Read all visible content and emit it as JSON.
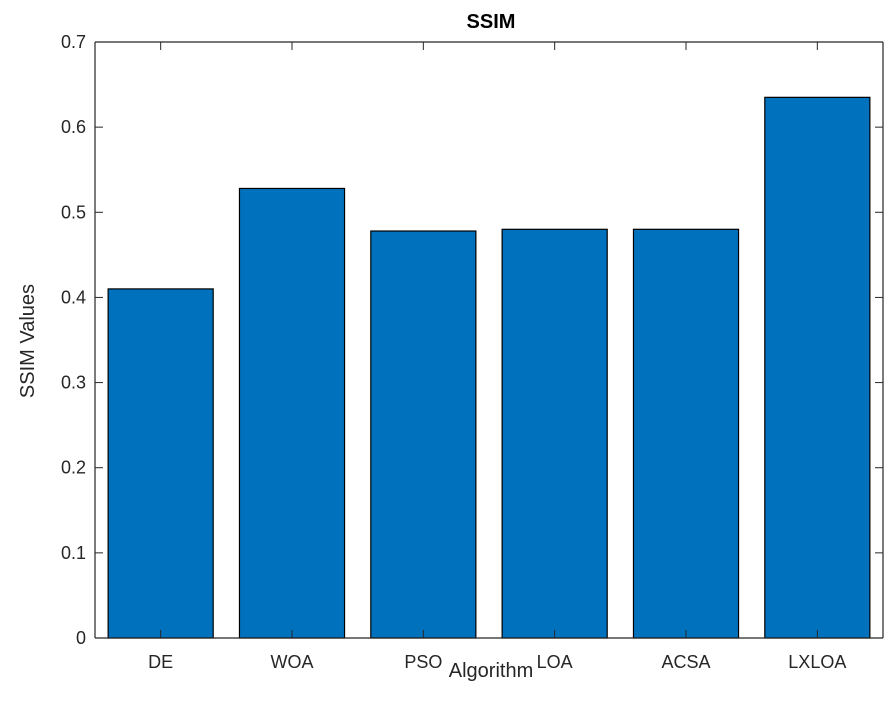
{
  "chart_data": {
    "type": "bar",
    "title": "SSIM",
    "xlabel": "Algorithm",
    "ylabel": "SSIM Values",
    "categories": [
      "DE",
      "WOA",
      "PSO",
      "LOA",
      "ACSA",
      "LXLOA"
    ],
    "values": [
      0.41,
      0.528,
      0.478,
      0.48,
      0.48,
      0.635
    ],
    "ylim": [
      0,
      0.7
    ],
    "yticks": [
      "0",
      "0.1",
      "0.2",
      "0.3",
      "0.4",
      "0.5",
      "0.6",
      "0.7"
    ],
    "grid": false,
    "bar_color": "#0072BD",
    "bar_edge_color": "#000000",
    "axis_color": "#262626"
  }
}
